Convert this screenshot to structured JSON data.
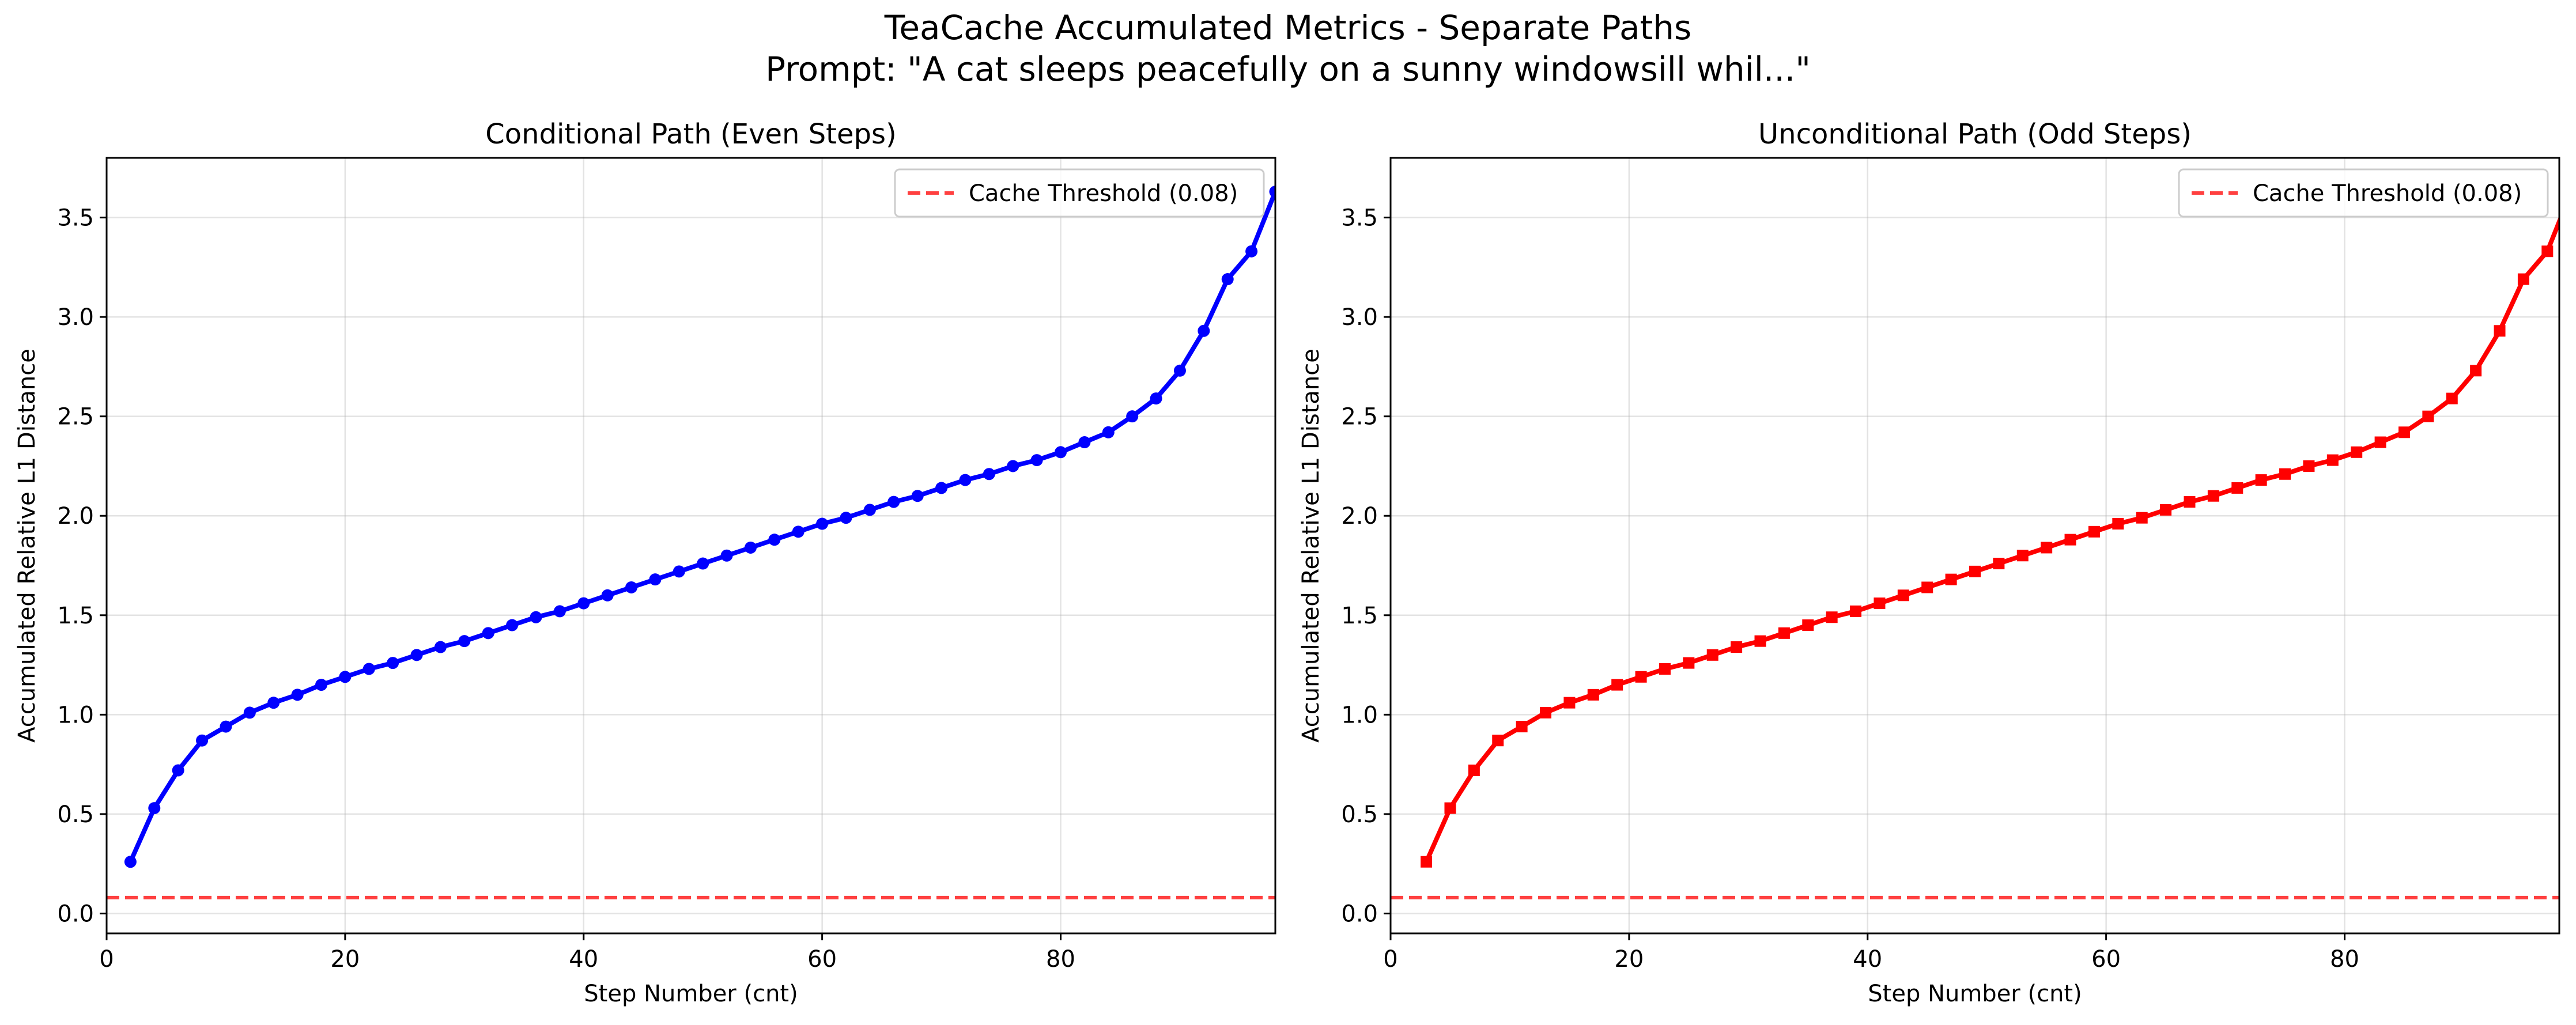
{
  "figure": {
    "title_line1": "TeaCache Accumulated Metrics - Separate Paths",
    "title_line2": "Prompt: \"A cat sleeps peacefully on a sunny windowsill whil...\""
  },
  "chart_data": [
    {
      "type": "line",
      "title": "Conditional Path (Even Steps)",
      "xlabel": "Step Number (cnt)",
      "ylabel": "Accumulated Relative L1 Distance",
      "xlim": [
        0,
        98
      ],
      "ylim": [
        -0.1,
        3.8
      ],
      "xticks": [
        0,
        20,
        40,
        60,
        80
      ],
      "yticks": [
        0.0,
        0.5,
        1.0,
        1.5,
        2.0,
        2.5,
        3.0,
        3.5
      ],
      "grid": true,
      "legend_position": "top-right",
      "marker": "circle",
      "color": "#0000ff",
      "x": [
        2,
        4,
        6,
        8,
        10,
        12,
        14,
        16,
        18,
        20,
        22,
        24,
        26,
        28,
        30,
        32,
        34,
        36,
        38,
        40,
        42,
        44,
        46,
        48,
        50,
        52,
        54,
        56,
        58,
        60,
        62,
        64,
        66,
        68,
        70,
        72,
        74,
        76,
        78,
        80,
        82,
        84,
        86,
        88,
        90,
        92,
        94,
        96,
        98
      ],
      "y": [
        0.26,
        0.53,
        0.72,
        0.87,
        0.94,
        1.01,
        1.06,
        1.1,
        1.15,
        1.19,
        1.23,
        1.26,
        1.3,
        1.34,
        1.37,
        1.41,
        1.45,
        1.49,
        1.52,
        1.56,
        1.6,
        1.64,
        1.68,
        1.72,
        1.76,
        1.8,
        1.84,
        1.88,
        1.92,
        1.96,
        1.99,
        2.03,
        2.07,
        2.1,
        2.14,
        2.18,
        2.21,
        2.25,
        2.28,
        2.32,
        2.37,
        2.42,
        2.5,
        2.59,
        2.73,
        2.93,
        3.19,
        3.33,
        3.63
      ],
      "threshold": {
        "label": "Cache Threshold (0.08)",
        "value": 0.08,
        "color": "#ff0000"
      }
    },
    {
      "type": "line",
      "title": "Unconditional Path (Odd Steps)",
      "xlabel": "Step Number (cnt)",
      "ylabel": "Accumulated Relative L1 Distance",
      "xlim": [
        0,
        98
      ],
      "ylim": [
        -0.1,
        3.8
      ],
      "xticks": [
        0,
        20,
        40,
        60,
        80
      ],
      "yticks": [
        0.0,
        0.5,
        1.0,
        1.5,
        2.0,
        2.5,
        3.0,
        3.5
      ],
      "grid": true,
      "legend_position": "top-right",
      "marker": "square",
      "color": "#ff0000",
      "x": [
        3,
        5,
        7,
        9,
        11,
        13,
        15,
        17,
        19,
        21,
        23,
        25,
        27,
        29,
        31,
        33,
        35,
        37,
        39,
        41,
        43,
        45,
        47,
        49,
        51,
        53,
        55,
        57,
        59,
        61,
        63,
        65,
        67,
        69,
        71,
        73,
        75,
        77,
        79,
        81,
        83,
        85,
        87,
        89,
        91,
        93,
        95,
        97,
        99
      ],
      "y": [
        0.26,
        0.53,
        0.72,
        0.87,
        0.94,
        1.01,
        1.06,
        1.1,
        1.15,
        1.19,
        1.23,
        1.26,
        1.3,
        1.34,
        1.37,
        1.41,
        1.45,
        1.49,
        1.52,
        1.56,
        1.6,
        1.64,
        1.68,
        1.72,
        1.76,
        1.8,
        1.84,
        1.88,
        1.92,
        1.96,
        1.99,
        2.03,
        2.07,
        2.1,
        2.14,
        2.18,
        2.21,
        2.25,
        2.28,
        2.32,
        2.37,
        2.42,
        2.5,
        2.59,
        2.73,
        2.93,
        3.19,
        3.33,
        3.63
      ],
      "threshold": {
        "label": "Cache Threshold (0.08)",
        "value": 0.08,
        "color": "#ff0000"
      }
    }
  ]
}
